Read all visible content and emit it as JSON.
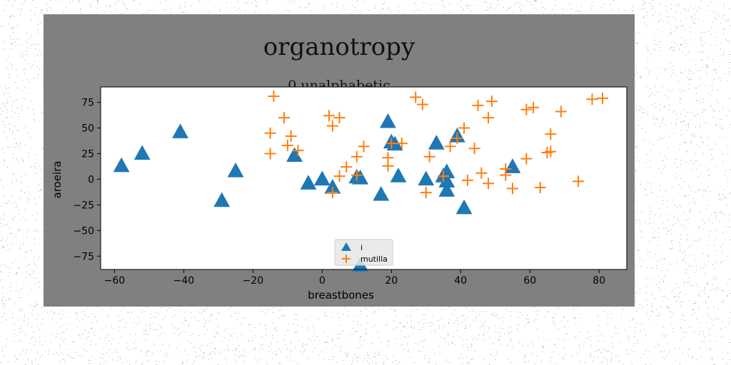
{
  "chart_data": {
    "type": "scatter",
    "title": "organotropy",
    "subtitle": "0 unalphabetic",
    "xlabel": "breastbones",
    "ylabel": "aroeira",
    "xlim": [
      -64,
      88
    ],
    "ylim": [
      -88,
      90
    ],
    "xticks": [
      -60,
      -40,
      -20,
      0,
      20,
      40,
      60,
      80
    ],
    "yticks": [
      75,
      50,
      25,
      0,
      -25,
      -50,
      -75
    ],
    "legend_position": "lower-center",
    "series": [
      {
        "name": "i",
        "marker": "triangle",
        "color": "#1f77b4",
        "points": [
          [
            -58,
            13
          ],
          [
            -52,
            25
          ],
          [
            -41,
            46
          ],
          [
            -29,
            -21
          ],
          [
            -25,
            8
          ],
          [
            -8,
            23
          ],
          [
            -4,
            -4
          ],
          [
            0,
            0
          ],
          [
            3,
            -8
          ],
          [
            10,
            2
          ],
          [
            11,
            1
          ],
          [
            17,
            -15
          ],
          [
            19,
            56
          ],
          [
            20,
            36
          ],
          [
            21,
            34
          ],
          [
            22,
            3
          ],
          [
            30,
            0
          ],
          [
            33,
            35
          ],
          [
            35,
            3
          ],
          [
            36,
            7
          ],
          [
            36,
            -2
          ],
          [
            36,
            -11
          ],
          [
            39,
            42
          ],
          [
            41,
            -28
          ],
          [
            55,
            12
          ],
          [
            11,
            -84
          ]
        ]
      },
      {
        "name": "mutilla",
        "marker": "plus",
        "color": "#ff7f0e",
        "points": [
          [
            -14,
            81
          ],
          [
            -11,
            60
          ],
          [
            -15,
            45
          ],
          [
            -10,
            33
          ],
          [
            -9,
            42
          ],
          [
            -7,
            28
          ],
          [
            -15,
            25
          ],
          [
            2,
            62
          ],
          [
            3,
            52
          ],
          [
            5,
            60
          ],
          [
            5,
            3
          ],
          [
            7,
            12
          ],
          [
            10,
            22
          ],
          [
            12,
            32
          ],
          [
            10,
            4
          ],
          [
            3,
            -13
          ],
          [
            19,
            21
          ],
          [
            19,
            13
          ],
          [
            20,
            35
          ],
          [
            23,
            35
          ],
          [
            27,
            80
          ],
          [
            29,
            73
          ],
          [
            31,
            22
          ],
          [
            30,
            -13
          ],
          [
            35,
            3
          ],
          [
            37,
            32
          ],
          [
            39,
            40
          ],
          [
            41,
            50
          ],
          [
            45,
            72
          ],
          [
            44,
            30
          ],
          [
            48,
            60
          ],
          [
            49,
            76
          ],
          [
            42,
            -1
          ],
          [
            46,
            6
          ],
          [
            48,
            -4
          ],
          [
            53,
            10
          ],
          [
            53,
            4
          ],
          [
            55,
            -9
          ],
          [
            59,
            20
          ],
          [
            59,
            68
          ],
          [
            61,
            70
          ],
          [
            63,
            -8
          ],
          [
            66,
            44
          ],
          [
            66,
            27
          ],
          [
            65,
            26
          ],
          [
            69,
            66
          ],
          [
            74,
            -2
          ],
          [
            78,
            78
          ],
          [
            81,
            79
          ]
        ]
      }
    ]
  }
}
